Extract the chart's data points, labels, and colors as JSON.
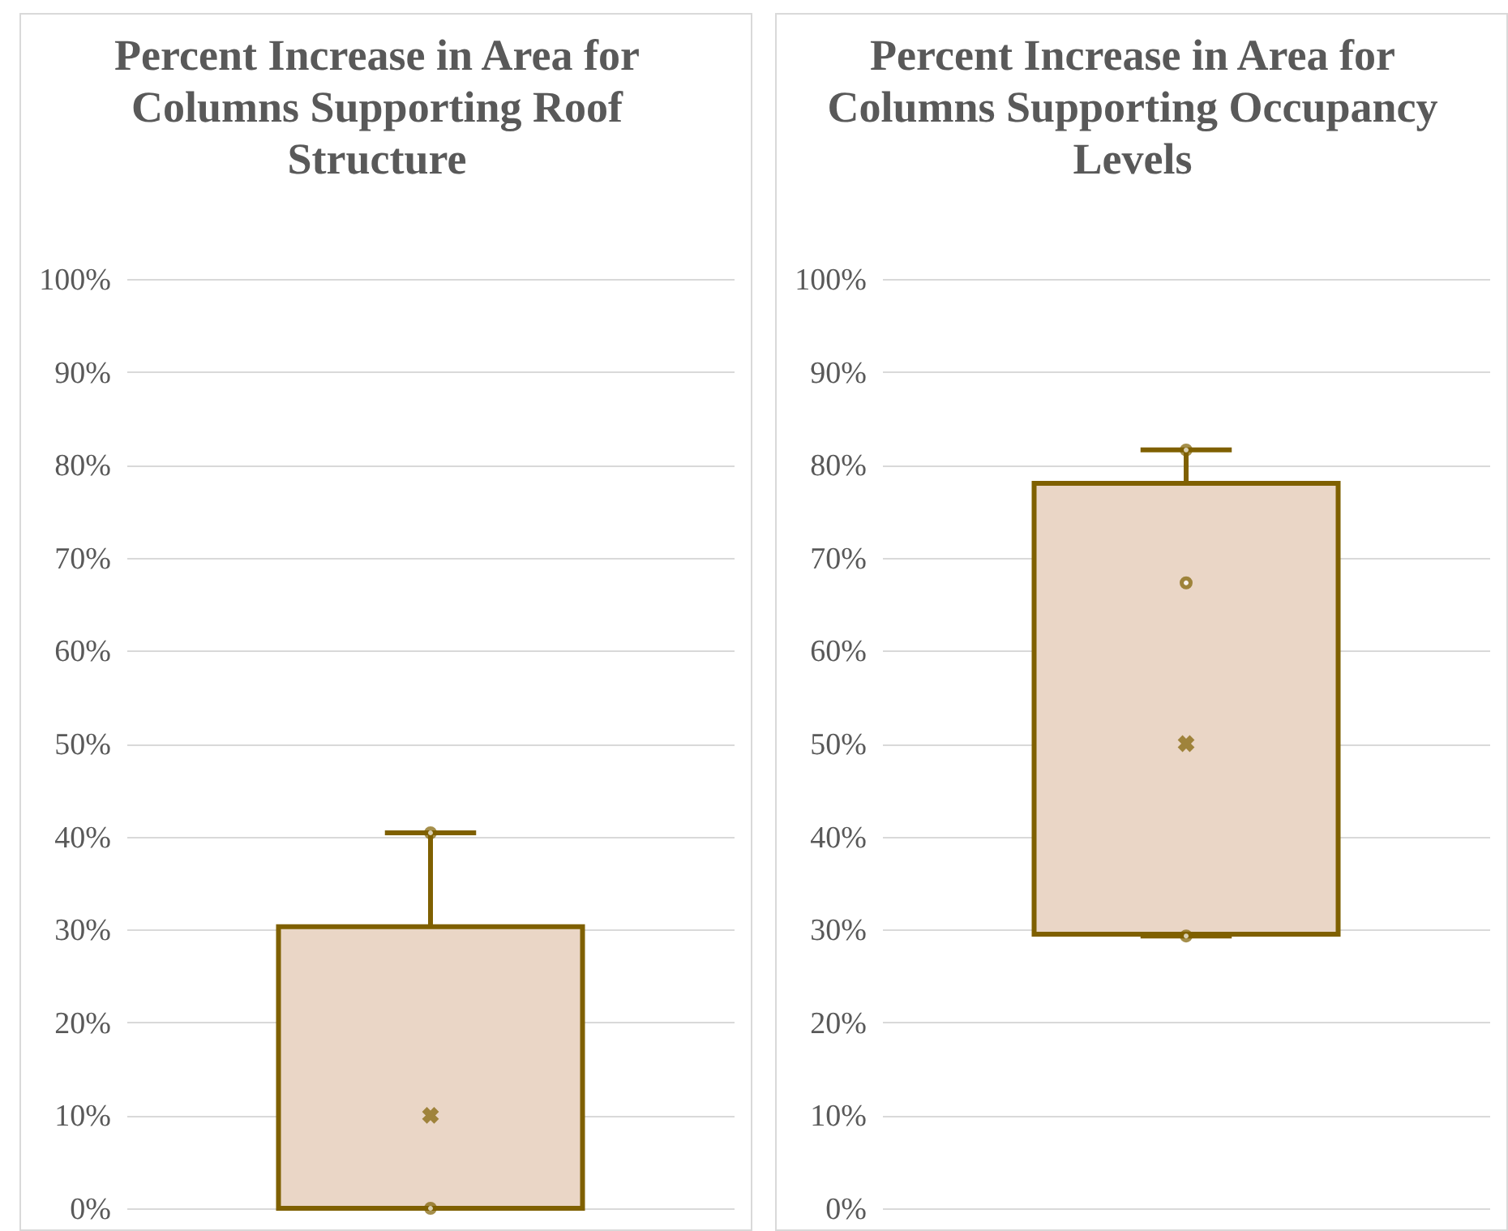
{
  "chart_data": [
    {
      "type": "box",
      "title": "Percent Increase in Area for Columns Supporting Roof Structure",
      "categories": [
        null
      ],
      "color": "#7f6000",
      "colors": [
        "#ead6c6"
      ],
      "boxes": [
        {
          "low": 0,
          "q1": 0,
          "median": 0,
          "q3": 30.3,
          "high": 40.4,
          "mean": 10
        }
      ],
      "series": [
        {
          "type": "scatter",
          "color": "#7f6000",
          "x": [
            null,
            null
          ],
          "values": [
            0,
            40.4
          ]
        }
      ],
      "ylim": [
        0,
        100
      ],
      "yticks": [
        {
          "value": 0,
          "label": "0%"
        },
        {
          "value": 10,
          "label": "10%"
        },
        {
          "value": 20,
          "label": "20%"
        },
        {
          "value": 30,
          "label": "30%"
        },
        {
          "value": 40,
          "label": "40%"
        },
        {
          "value": 50,
          "label": "50%"
        },
        {
          "value": 60,
          "label": "60%"
        },
        {
          "value": 70,
          "label": "70%"
        },
        {
          "value": 80,
          "label": "80%"
        },
        {
          "value": 90,
          "label": "90%"
        },
        {
          "value": 100,
          "label": "100%"
        }
      ],
      "grid": "y"
    },
    {
      "type": "box",
      "title": "Percent Increase in Area for Columns Supporting Occupancy Levels",
      "categories": [
        null
      ],
      "color": "#7f6000",
      "colors": [
        "#ead6c6"
      ],
      "boxes": [
        {
          "low": 29.3,
          "q1": 29.5,
          "median": 29.5,
          "q3": 78,
          "high": 81.6,
          "mean": 50
        }
      ],
      "series": [
        {
          "type": "scatter",
          "color": "#7f6000",
          "x": [
            null,
            null,
            null
          ],
          "values": [
            29.3,
            67.3,
            81.6
          ]
        }
      ],
      "ylim": [
        0,
        100
      ],
      "yticks": [
        {
          "value": 0,
          "label": "0%"
        },
        {
          "value": 10,
          "label": "10%"
        },
        {
          "value": 20,
          "label": "20%"
        },
        {
          "value": 30,
          "label": "30%"
        },
        {
          "value": 40,
          "label": "40%"
        },
        {
          "value": 50,
          "label": "50%"
        },
        {
          "value": 60,
          "label": "60%"
        },
        {
          "value": 70,
          "label": "70%"
        },
        {
          "value": 80,
          "label": "80%"
        },
        {
          "value": 90,
          "label": "90%"
        },
        {
          "value": 100,
          "label": "100%"
        }
      ],
      "grid": "y"
    }
  ]
}
